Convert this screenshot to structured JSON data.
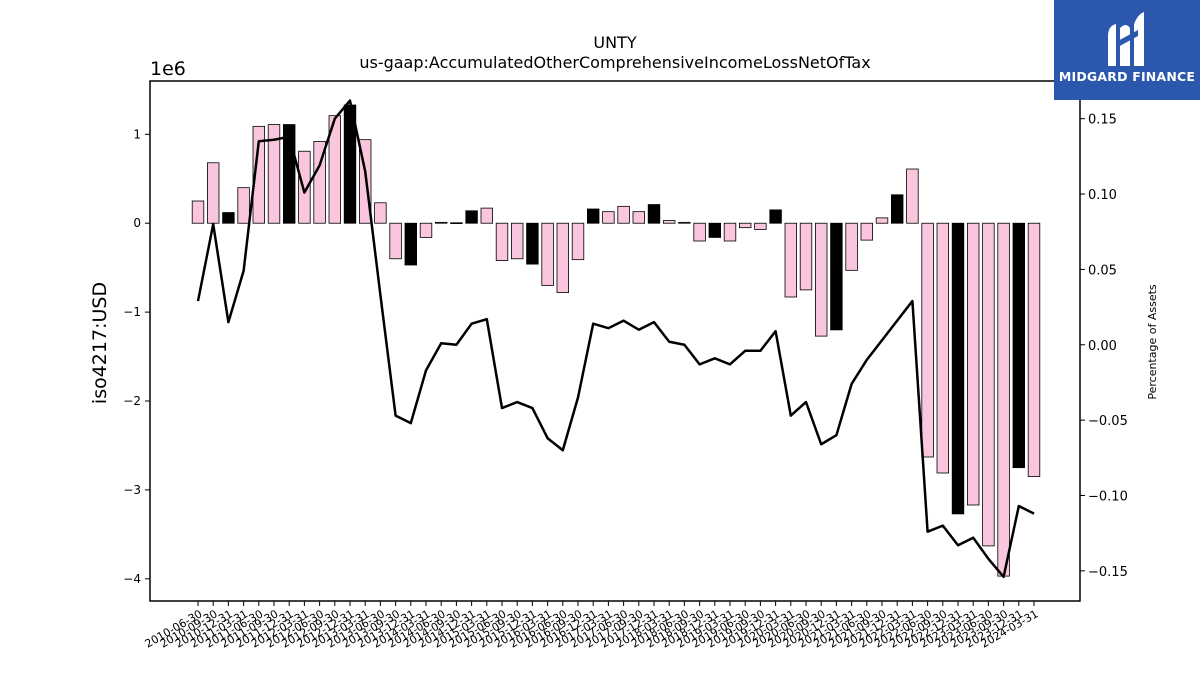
{
  "chart_data": {
    "type": "bar",
    "title": "UNTY",
    "subtitle": "us-gaap:AccumulatedOtherComprehensiveIncomeLossNetOfTax",
    "ylabel": "iso4217:USD",
    "y2label": "Percentage of Assets",
    "y_offset_label": "1e6",
    "ylim": [
      -4.25,
      1.6
    ],
    "y2lim": [
      -0.17,
      0.175
    ],
    "yticks": [
      1,
      0,
      -1,
      -2,
      -3,
      -4
    ],
    "ytick_labels": [
      "1",
      "0",
      "−1",
      "−2",
      "−3",
      "−4"
    ],
    "y2ticks": [
      0.15,
      0.1,
      0.05,
      0.0,
      -0.05,
      -0.1,
      -0.15
    ],
    "y2tick_labels": [
      "0.15",
      "0.10",
      "0.05",
      "0.00",
      "−0.05",
      "−0.10",
      "−0.15"
    ],
    "colors": {
      "bar_pink": "#f9c6dd",
      "bar_black": "#000000",
      "line": "#000000"
    },
    "categories": [
      "2010-06-30",
      "2010-09-30",
      "2010-12-31",
      "2011-03-31",
      "2011-06-30",
      "2011-09-30",
      "2011-12-31",
      "2012-03-31",
      "2012-06-30",
      "2012-09-30",
      "2012-12-31",
      "2013-03-31",
      "2013-06-30",
      "2013-09-30",
      "2013-12-31",
      "2014-03-31",
      "2014-06-30",
      "2014-09-30",
      "2014-12-31",
      "2015-03-31",
      "2015-06-30",
      "2015-09-30",
      "2015-12-31",
      "2016-03-31",
      "2016-06-30",
      "2016-09-30",
      "2016-12-31",
      "2017-03-31",
      "2017-06-30",
      "2017-09-30",
      "2017-12-31",
      "2018-03-31",
      "2018-06-30",
      "2018-09-30",
      "2018-12-31",
      "2019-03-31",
      "2019-06-30",
      "2019-09-30",
      "2019-12-31",
      "2020-03-31",
      "2020-06-30",
      "2020-09-30",
      "2020-12-31",
      "2021-03-31",
      "2021-06-30",
      "2021-09-30",
      "2021-12-31",
      "2022-03-31",
      "2022-06-30",
      "2022-09-30",
      "2022-12-31",
      "2023-03-31",
      "2023-06-30",
      "2023-09-30",
      "2023-12-31",
      "2024-03-31"
    ],
    "series": [
      {
        "kind": "bar",
        "axis": "left",
        "values": [
          0.25,
          0.68,
          0.12,
          0.4,
          1.09,
          1.11,
          1.11,
          0.81,
          0.92,
          1.21,
          1.33,
          0.94,
          0.23,
          -0.4,
          -0.47,
          -0.16,
          0.01,
          0.005,
          0.14,
          0.17,
          -0.42,
          -0.4,
          -0.46,
          -0.7,
          -0.78,
          -0.41,
          0.16,
          0.13,
          0.19,
          0.13,
          0.21,
          0.03,
          0.01,
          -0.2,
          -0.16,
          -0.2,
          -0.05,
          -0.07,
          0.15,
          -0.83,
          -0.75,
          -1.27,
          -1.2,
          -0.53,
          -0.19,
          0.06,
          0.32,
          0.61,
          -2.63,
          -2.81,
          -3.27,
          -3.17,
          -3.63,
          -3.97,
          -2.75,
          -2.85
        ],
        "highlight": [
          false,
          false,
          true,
          false,
          false,
          false,
          true,
          false,
          false,
          false,
          true,
          false,
          false,
          false,
          true,
          false,
          false,
          false,
          true,
          false,
          false,
          false,
          true,
          false,
          false,
          false,
          true,
          false,
          false,
          false,
          true,
          false,
          false,
          false,
          true,
          false,
          false,
          false,
          true,
          false,
          false,
          false,
          true,
          false,
          false,
          false,
          true,
          false,
          false,
          false,
          true,
          false,
          false,
          false,
          true,
          false
        ]
      },
      {
        "kind": "line",
        "axis": "right",
        "values": [
          0.029,
          0.08,
          0.015,
          0.049,
          0.135,
          0.136,
          0.138,
          0.101,
          0.119,
          0.15,
          0.162,
          0.115,
          0.033,
          -0.047,
          -0.052,
          -0.017,
          0.001,
          0.0,
          0.014,
          0.017,
          -0.042,
          -0.038,
          -0.042,
          -0.062,
          -0.07,
          -0.035,
          0.014,
          0.011,
          0.016,
          0.01,
          0.015,
          0.002,
          0.0,
          -0.013,
          -0.009,
          -0.013,
          -0.004,
          -0.004,
          0.009,
          -0.047,
          -0.038,
          -0.066,
          -0.06,
          -0.026,
          -0.01,
          0.003,
          0.016,
          0.029,
          -0.124,
          -0.12,
          -0.133,
          -0.128,
          -0.142,
          -0.154,
          -0.107,
          -0.112
        ]
      }
    ],
    "grid": false,
    "legend": "none"
  },
  "logo": {
    "text": "MIDGARD FINANCE",
    "background": "#2b57ad"
  }
}
